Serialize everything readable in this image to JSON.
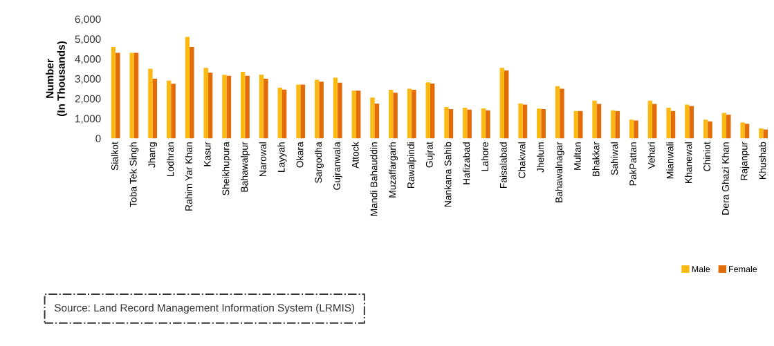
{
  "chart_data": {
    "type": "bar",
    "ylabel": "Number\n(In Thousands)",
    "categories": [
      "Sialkot",
      "Toba Tek Singh",
      "Jhang",
      "Lodhran",
      "Rahim Yar Khan",
      "Kasur",
      "Sheikhupura",
      "Bahawalpur",
      "Narowal",
      "Layyah",
      "Okara",
      "Sargodha",
      "Gujranwala",
      "Attock",
      "Mandi Bahauddin",
      "Muzaffargarh",
      "Rawalpindi",
      "Gujrat",
      "Nankana Sahib",
      "Hafizabad",
      "Lahore",
      "Faisalabad",
      "Chakwal",
      "Jhelum",
      "Bahawalnagar",
      "Multan",
      "Bhakkar",
      "Sahiwal",
      "PakPattan",
      "Vehari",
      "Mianwali",
      "Khanewal",
      "Chiniot",
      "Dera Ghazi Khan",
      "Rajanpur",
      "Khushab"
    ],
    "series": [
      {
        "name": "Male",
        "color": "#fbb914",
        "values": [
          4600,
          4300,
          3500,
          2900,
          5100,
          3550,
          3200,
          3350,
          3200,
          2550,
          2700,
          2950,
          3050,
          2400,
          2050,
          2440,
          2500,
          2820,
          1580,
          1540,
          1510,
          3550,
          1760,
          1500,
          2630,
          1380,
          1900,
          1410,
          940,
          1900,
          1540,
          1700,
          940,
          1280,
          800,
          500
        ]
      },
      {
        "name": "Female",
        "color": "#e36c0a",
        "values": [
          4300,
          4300,
          3000,
          2750,
          4600,
          3300,
          3150,
          3150,
          3000,
          2450,
          2700,
          2850,
          2800,
          2400,
          1750,
          2300,
          2440,
          2760,
          1470,
          1450,
          1410,
          3420,
          1700,
          1470,
          2500,
          1380,
          1730,
          1380,
          900,
          1730,
          1380,
          1630,
          860,
          1190,
          730,
          450
        ]
      }
    ],
    "ylim": [
      0,
      6000
    ],
    "yticks": [
      {
        "value": 0,
        "label": "0"
      },
      {
        "value": 1000,
        "label": "1,000"
      },
      {
        "value": 2000,
        "label": "2,000"
      },
      {
        "value": 3000,
        "label": "3,000"
      },
      {
        "value": 4000,
        "label": "4,000"
      },
      {
        "value": 5000,
        "label": "5,000"
      },
      {
        "value": 6000,
        "label": "6,000"
      }
    ],
    "grid": false,
    "legend": "bottom right",
    "annotations": [
      "Source: Land Record Management Information System (LRMIS)"
    ]
  }
}
